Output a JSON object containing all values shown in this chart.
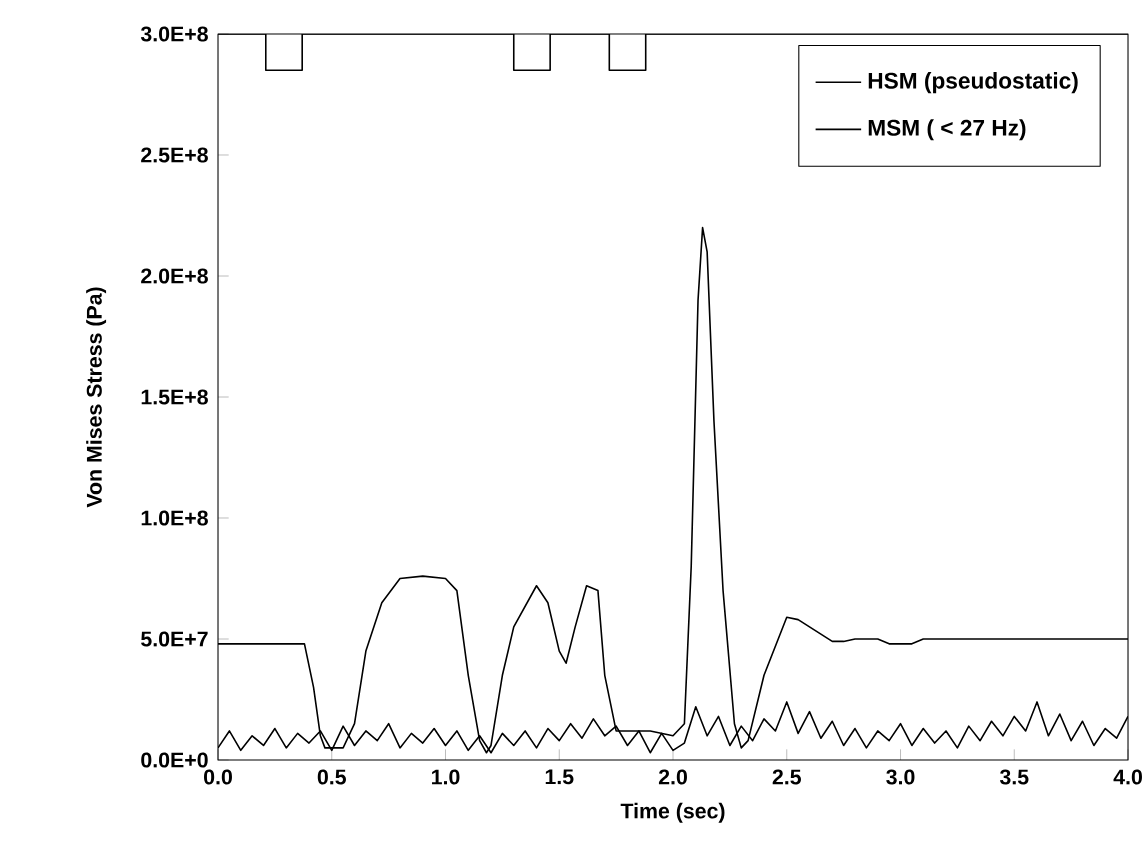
{
  "chart_data": {
    "type": "line",
    "xlabel": "Time (sec)",
    "ylabel": "Von Mises Stress (Pa)",
    "xlim": [
      0,
      4
    ],
    "ylim": [
      0,
      300000000.0
    ],
    "xticks": [
      {
        "value": 0,
        "label": "0.0"
      },
      {
        "value": 0.5,
        "label": "0.5"
      },
      {
        "value": 1,
        "label": "1.0"
      },
      {
        "value": 1.5,
        "label": "1.5"
      },
      {
        "value": 2,
        "label": "2.0"
      },
      {
        "value": 2.5,
        "label": "2.5"
      },
      {
        "value": 3,
        "label": "3.0"
      },
      {
        "value": 3.5,
        "label": "3.5"
      },
      {
        "value": 4,
        "label": "4.0"
      }
    ],
    "yticks": [
      {
        "value": 0,
        "label": "0.0E+0"
      },
      {
        "value": 50000000.0,
        "label": "5.0E+7"
      },
      {
        "value": 100000000.0,
        "label": "1.0E+8"
      },
      {
        "value": 150000000.0,
        "label": "1.5E+8"
      },
      {
        "value": 200000000.0,
        "label": "2.0E+8"
      },
      {
        "value": 250000000.0,
        "label": "2.5E+8"
      },
      {
        "value": 300000000.0,
        "label": "3.0E+8"
      }
    ],
    "legend": "top right",
    "marker": "none",
    "series": [
      {
        "name": "HSM (pseudostatic)",
        "color": "#000000",
        "x": [
          0,
          0.38,
          0.42,
          0.45,
          0.47,
          0.55,
          0.6,
          0.65,
          0.72,
          0.8,
          0.9,
          1.0,
          1.05,
          1.1,
          1.15,
          1.18,
          1.2,
          1.25,
          1.3,
          1.4,
          1.45,
          1.5,
          1.53,
          1.57,
          1.62,
          1.67,
          1.7,
          1.75,
          1.9,
          2.0,
          2.05,
          2.08,
          2.11,
          2.13,
          2.15,
          2.18,
          2.22,
          2.27,
          2.3,
          2.33,
          2.4,
          2.5,
          2.55,
          2.65,
          2.7,
          2.75,
          2.8,
          2.9,
          2.95,
          3.05,
          3.1,
          4.0
        ],
        "values": [
          48000000.0,
          48000000.0,
          30000000.0,
          10000000.0,
          5000000.0,
          5000000.0,
          15000000.0,
          45000000.0,
          65000000.0,
          75000000.0,
          76000000.0,
          75000000.0,
          70000000.0,
          35000000.0,
          8000000.0,
          3000000.0,
          6000000.0,
          35000000.0,
          55000000.0,
          72000000.0,
          65000000.0,
          45000000.0,
          40000000.0,
          55000000.0,
          72000000.0,
          70000000.0,
          35000000.0,
          12000000.0,
          12000000.0,
          10000000.0,
          15000000.0,
          80000000.0,
          190000000.0,
          220000000.0,
          210000000.0,
          140000000.0,
          70000000.0,
          15000000.0,
          5000000.0,
          8000000.0,
          35000000.0,
          59000000.0,
          58000000.0,
          52000000.0,
          49000000.0,
          49000000.0,
          50000000.0,
          50000000.0,
          48000000.0,
          48000000.0,
          50000000.0,
          50000000.0
        ]
      },
      {
        "name": "MSM ( < 27 Hz)",
        "color": "#000000",
        "x": [
          0,
          0.05,
          0.1,
          0.15,
          0.2,
          0.25,
          0.3,
          0.35,
          0.4,
          0.45,
          0.5,
          0.55,
          0.6,
          0.65,
          0.7,
          0.75,
          0.8,
          0.85,
          0.9,
          0.95,
          1.0,
          1.05,
          1.1,
          1.15,
          1.2,
          1.25,
          1.3,
          1.35,
          1.4,
          1.45,
          1.5,
          1.55,
          1.6,
          1.65,
          1.7,
          1.75,
          1.8,
          1.85,
          1.9,
          1.95,
          2.0,
          2.05,
          2.1,
          2.15,
          2.2,
          2.25,
          2.3,
          2.35,
          2.4,
          2.45,
          2.5,
          2.55,
          2.6,
          2.65,
          2.7,
          2.75,
          2.8,
          2.85,
          2.9,
          2.95,
          3.0,
          3.05,
          3.1,
          3.15,
          3.2,
          3.25,
          3.3,
          3.35,
          3.4,
          3.45,
          3.5,
          3.55,
          3.6,
          3.65,
          3.7,
          3.75,
          3.8,
          3.85,
          3.9,
          3.95,
          4.0
        ],
        "values": [
          5000000.0,
          12000000.0,
          4000000.0,
          10000000.0,
          6000000.0,
          13000000.0,
          5000000.0,
          11000000.0,
          7000000.0,
          12000000.0,
          4000000.0,
          14000000.0,
          6000000.0,
          12000000.0,
          8000000.0,
          15000000.0,
          5000000.0,
          11000000.0,
          7000000.0,
          13000000.0,
          6000000.0,
          12000000.0,
          4000000.0,
          10000000.0,
          3000000.0,
          11000000.0,
          6000000.0,
          12000000.0,
          5000000.0,
          13000000.0,
          8000000.0,
          15000000.0,
          9000000.0,
          17000000.0,
          10000000.0,
          14000000.0,
          6000000.0,
          12000000.0,
          3000000.0,
          11000000.0,
          4000000.0,
          7000000.0,
          22000000.0,
          10000000.0,
          18000000.0,
          6000000.0,
          14000000.0,
          8000000.0,
          17000000.0,
          12000000.0,
          24000000.0,
          11000000.0,
          20000000.0,
          9000000.0,
          16000000.0,
          6000000.0,
          13000000.0,
          5000000.0,
          12000000.0,
          8000000.0,
          15000000.0,
          6000000.0,
          13000000.0,
          7000000.0,
          12000000.0,
          5000000.0,
          14000000.0,
          8000000.0,
          16000000.0,
          10000000.0,
          18000000.0,
          12000000.0,
          24000000.0,
          10000000.0,
          19000000.0,
          8000000.0,
          16000000.0,
          6000000.0,
          13000000.0,
          9000000.0,
          18000000.0
        ]
      },
      {
        "color": "#000000",
        "x": [
          0,
          0.21,
          0.21,
          0.37,
          0.37,
          1.3,
          1.3,
          1.46,
          1.46,
          1.72,
          1.72,
          1.88,
          1.88,
          4.0
        ],
        "values": [
          300000000.0,
          300000000.0,
          285000000.0,
          285000000.0,
          300000000.0,
          300000000.0,
          285000000.0,
          285000000.0,
          300000000.0,
          300000000.0,
          285000000.0,
          285000000.0,
          300000000.0,
          300000000.0
        ]
      }
    ]
  }
}
